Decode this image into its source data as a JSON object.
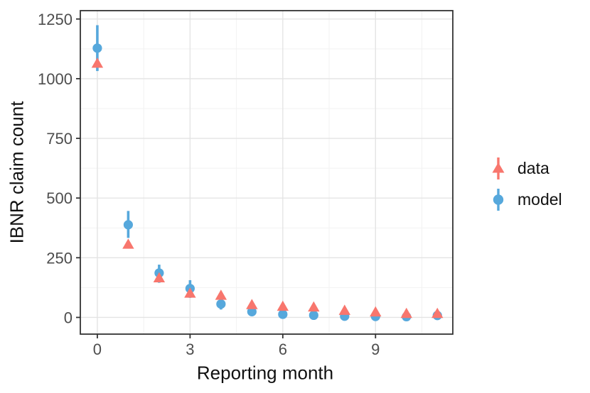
{
  "chart_data": {
    "type": "scatter",
    "title": "",
    "xlabel": "Reporting month",
    "ylabel": "IBNR claim count",
    "x": [
      0,
      1,
      2,
      3,
      4,
      5,
      6,
      7,
      8,
      9,
      10,
      11
    ],
    "x_ticks": [
      0,
      3,
      6,
      9
    ],
    "x_minor_ticks": [
      1.5,
      4.5,
      7.5,
      10.5
    ],
    "y_ticks": [
      0,
      250,
      500,
      750,
      1000,
      1250
    ],
    "y_minor_ticks": [
      125,
      375,
      625,
      875,
      1125
    ],
    "xlim": [
      -0.55,
      11.5
    ],
    "ylim": [
      -70,
      1285
    ],
    "grid": "major+minor",
    "legend_position": "right",
    "colors": {
      "grid_major": "#E4E4E4",
      "grid_minor": "#F2F2F2",
      "panel_border": "#333333",
      "tick_mark": "#333333",
      "tick_label": "#4D4D4D",
      "axis_title": "#111111",
      "background": "#FFFFFF"
    },
    "series": [
      {
        "name": "data",
        "shape": "triangle",
        "color": "#F8766D",
        "values": [
          1063,
          305,
          164,
          100,
          91,
          52,
          45,
          42,
          28,
          21,
          15,
          15
        ]
      },
      {
        "name": "model",
        "shape": "circle",
        "color": "#56A8DC",
        "values": [
          1128,
          388,
          186,
          121,
          56,
          24,
          13,
          9,
          5,
          4,
          3,
          8
        ],
        "lower": [
          1032,
          333,
          145,
          82,
          33,
          9,
          2,
          1,
          0,
          0,
          0,
          1
        ],
        "upper": [
          1224,
          446,
          221,
          156,
          80,
          43,
          27,
          21,
          16,
          13,
          11,
          17
        ]
      }
    ]
  }
}
